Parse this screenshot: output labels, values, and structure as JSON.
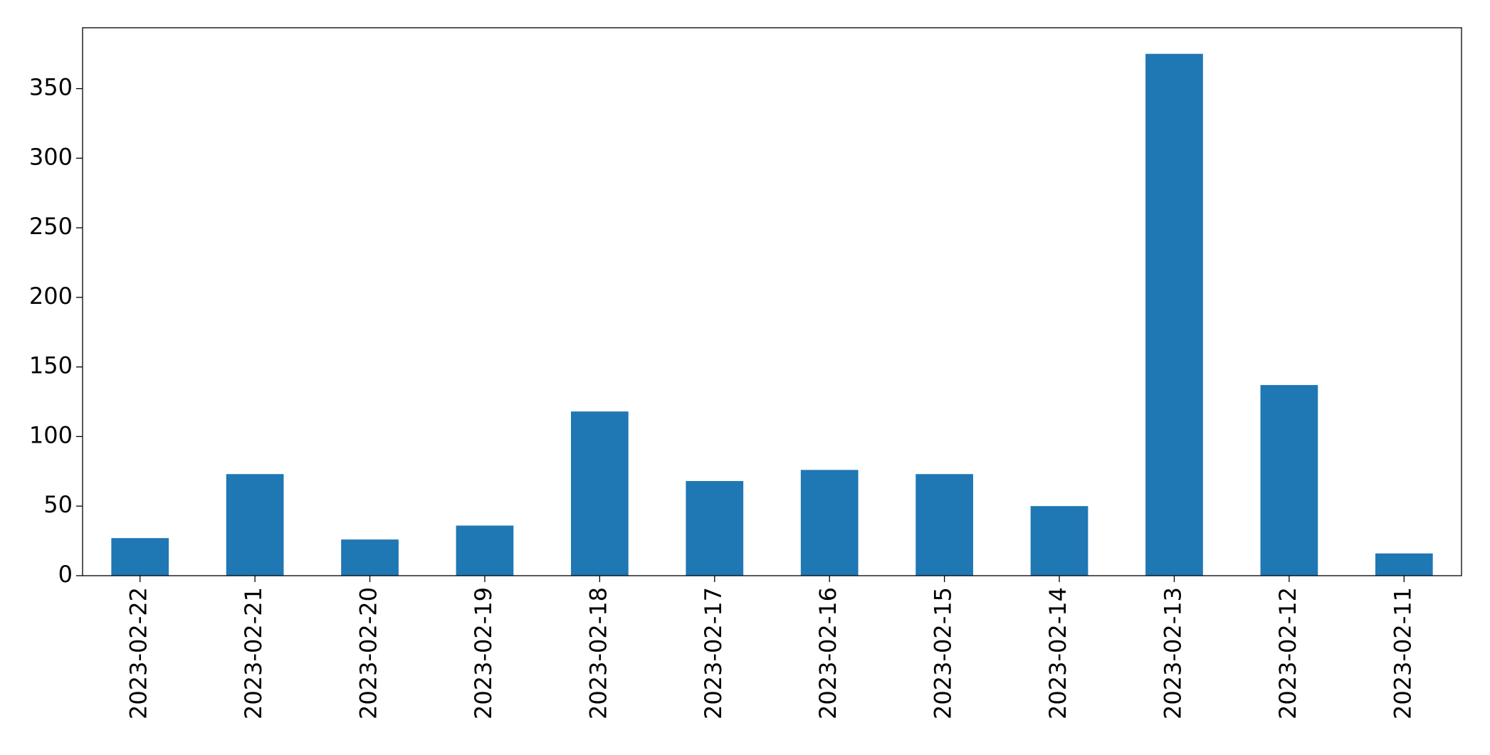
{
  "chart_data": {
    "type": "bar",
    "categories": [
      "2023-02-22",
      "2023-02-21",
      "2023-02-20",
      "2023-02-19",
      "2023-02-18",
      "2023-02-17",
      "2023-02-16",
      "2023-02-15",
      "2023-02-14",
      "2023-02-13",
      "2023-02-12",
      "2023-02-11"
    ],
    "values": [
      27,
      73,
      26,
      36,
      118,
      68,
      76,
      73,
      50,
      375,
      137,
      16
    ],
    "color": "#1f77b4",
    "ylim": [
      0,
      393.75
    ],
    "yticks": [
      0,
      50,
      100,
      150,
      200,
      250,
      300,
      350
    ],
    "grid": false
  }
}
